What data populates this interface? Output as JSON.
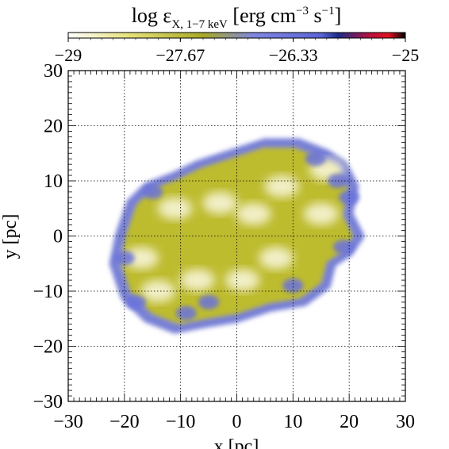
{
  "chart_data": {
    "type": "heatmap",
    "title": "",
    "colorbar": {
      "label_prefix": "log ε",
      "label_sub": "X, 1−7 keV",
      "label_units_a": " [erg cm",
      "label_units_sup1": "−3",
      "label_units_b": " s",
      "label_units_sup2": "−1",
      "label_units_c": "]",
      "range": [
        -29,
        -25
      ],
      "ticks": [
        {
          "value": -29,
          "label": "−29"
        },
        {
          "value": -27.67,
          "label": "−27.67"
        },
        {
          "value": -26.33,
          "label": "−26.33"
        },
        {
          "value": -25,
          "label": "−25"
        }
      ],
      "colors": [
        "#ffffff",
        "#d6d23a",
        "#a6a827",
        "#7f86e0",
        "#4a52d6",
        "#14144a",
        "#d01030",
        "#000000"
      ]
    },
    "xlabel": "x [pc]",
    "ylabel": "y [pc]",
    "xlim": [
      -30,
      30
    ],
    "ylim": [
      -30,
      30
    ],
    "xticks": [
      {
        "value": -30,
        "label": "−30"
      },
      {
        "value": -20,
        "label": "−20"
      },
      {
        "value": -10,
        "label": "−10"
      },
      {
        "value": 0,
        "label": "0"
      },
      {
        "value": 10,
        "label": "10"
      },
      {
        "value": 20,
        "label": "20"
      },
      {
        "value": 30,
        "label": "30"
      }
    ],
    "yticks": [
      {
        "value": -30,
        "label": "−30"
      },
      {
        "value": -20,
        "label": "−20"
      },
      {
        "value": -10,
        "label": "−10"
      },
      {
        "value": 0,
        "label": "0"
      },
      {
        "value": 10,
        "label": "10"
      },
      {
        "value": 20,
        "label": "20"
      },
      {
        "value": 30,
        "label": "30"
      }
    ],
    "grid": true,
    "grid_style": "dotted",
    "remnant": {
      "outline": [
        [
          -21,
          0
        ],
        [
          -19,
          6
        ],
        [
          -16,
          9
        ],
        [
          -11,
          11
        ],
        [
          -7,
          13
        ],
        [
          -1,
          15
        ],
        [
          5,
          17
        ],
        [
          11,
          17
        ],
        [
          16,
          15
        ],
        [
          19,
          13
        ],
        [
          21,
          9
        ],
        [
          20,
          4
        ],
        [
          22,
          0
        ],
        [
          20,
          -3
        ],
        [
          17,
          -5
        ],
        [
          16,
          -9
        ],
        [
          12,
          -12
        ],
        [
          6,
          -13
        ],
        [
          0,
          -15
        ],
        [
          -6,
          -16
        ],
        [
          -11,
          -17
        ],
        [
          -16,
          -15
        ],
        [
          -20,
          -11
        ],
        [
          -22,
          -5
        ]
      ],
      "bright_patches": [
        [
          -17,
          -4
        ],
        [
          -11,
          5
        ],
        [
          -3,
          6
        ],
        [
          3,
          4
        ],
        [
          8,
          9
        ],
        [
          15,
          4
        ],
        [
          -7,
          -8
        ],
        [
          1,
          -8
        ],
        [
          7,
          -4
        ],
        [
          -14,
          -10
        ],
        [
          16,
          12
        ]
      ],
      "blue_patches": [
        [
          18,
          10
        ],
        [
          20,
          7
        ],
        [
          14,
          14
        ],
        [
          -18,
          -12
        ],
        [
          -9,
          -14
        ],
        [
          -15,
          8
        ],
        [
          -5,
          -12
        ],
        [
          10,
          -9
        ],
        [
          19,
          -2
        ],
        [
          -20,
          -4
        ]
      ]
    }
  }
}
